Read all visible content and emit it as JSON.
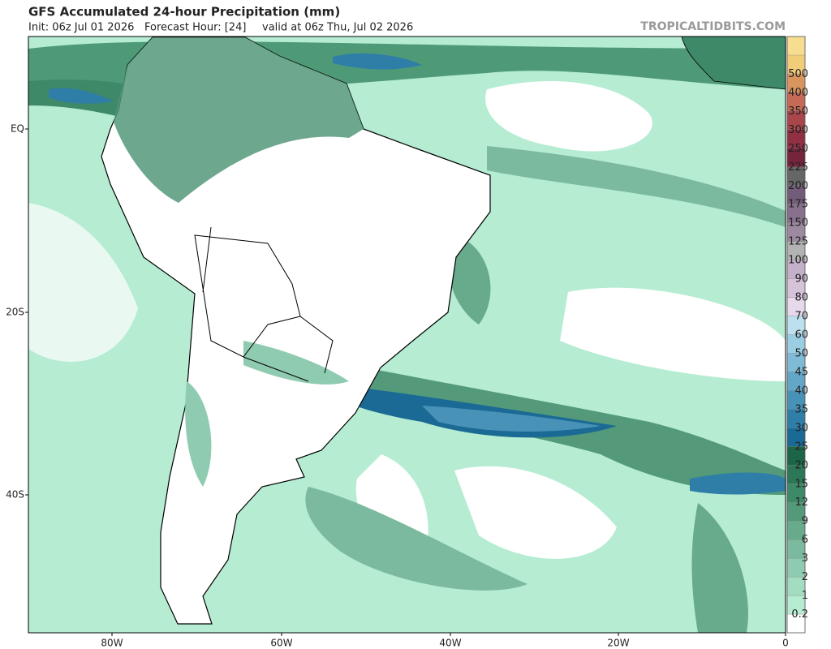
{
  "header": {
    "title": "GFS Accumulated 24-hour Precipitation (mm)",
    "init": "Init: 06z Jul 01 2026",
    "forecast_hour": "Forecast Hour: [24]",
    "valid": "valid at 06z Thu, Jul 02 2026",
    "site": "TROPICALTIDBITS.COM"
  },
  "axes": {
    "lat_labels": [
      "EQ",
      "20S",
      "40S"
    ],
    "lon_labels": [
      "80W",
      "60W",
      "40W",
      "20W",
      "0"
    ]
  },
  "colorbar": {
    "labels": [
      0.2,
      1,
      2,
      3,
      6,
      9,
      12,
      15,
      20,
      25,
      30,
      35,
      40,
      45,
      50,
      60,
      70,
      80,
      90,
      100,
      125,
      150,
      175,
      200,
      225,
      250,
      300,
      350,
      400,
      500
    ],
    "colors": [
      "#ffffff",
      "#b5ecd2",
      "#a2dcc1",
      "#8fcbb0",
      "#7bba9e",
      "#67aa8c",
      "#53997a",
      "#3e8968",
      "#2b7756",
      "#1c6647",
      "#1b6a95",
      "#2e7ea8",
      "#4892b8",
      "#63a6c8",
      "#7fbad6",
      "#9bcde3",
      "#bde0ef",
      "#e6d9ec",
      "#d6c3da",
      "#c4b1c9",
      "#b3b3b3",
      "#9b8aa0",
      "#87718d",
      "#725c79",
      "#666666",
      "#74253c",
      "#913043",
      "#a8464c",
      "#c46a56",
      "#d8955e",
      "#f1cd7a",
      "#f7dd8f"
    ]
  }
}
